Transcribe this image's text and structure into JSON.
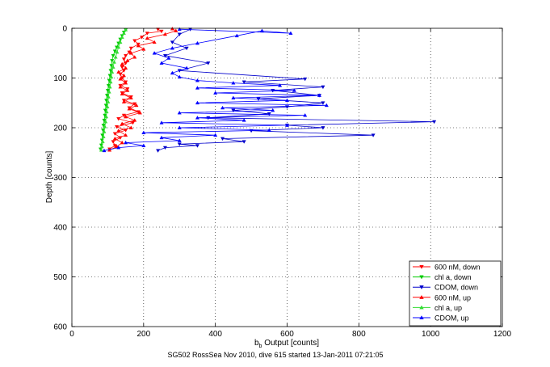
{
  "figure": {
    "caption": "SG502 RossSea Nov 2010, dive 615 started 13-Jan-2011 07:21:05",
    "background": "#ffffff"
  },
  "chart_data": {
    "type": "line",
    "title": "",
    "xlabel_main": "b",
    "xlabel_sub": "b",
    "xlabel_rest": " Output [counts]",
    "ylabel": "Depth [counts]",
    "xlim": [
      0,
      1200
    ],
    "ylim": [
      0,
      600
    ],
    "y_reversed": true,
    "grid": true,
    "grid_style": "dotted",
    "xticks": [
      0,
      200,
      400,
      600,
      800,
      1000,
      1200
    ],
    "yticks": [
      0,
      100,
      200,
      300,
      400,
      500,
      600
    ],
    "legend_position": "bottom-right",
    "series": [
      {
        "name": "600 nM, down",
        "color": "#ff0000",
        "marker": "triangle-down",
        "points": [
          [
            240,
            2
          ],
          [
            250,
            6
          ],
          [
            210,
            10
          ],
          [
            195,
            18
          ],
          [
            175,
            25
          ],
          [
            185,
            32
          ],
          [
            165,
            40
          ],
          [
            160,
            48
          ],
          [
            150,
            55
          ],
          [
            145,
            62
          ],
          [
            150,
            70
          ],
          [
            140,
            78
          ],
          [
            145,
            85
          ],
          [
            135,
            92
          ],
          [
            140,
            100
          ],
          [
            150,
            108
          ],
          [
            135,
            115
          ],
          [
            155,
            122
          ],
          [
            140,
            130
          ],
          [
            165,
            138
          ],
          [
            145,
            145
          ],
          [
            175,
            152
          ],
          [
            160,
            160
          ],
          [
            185,
            168
          ],
          [
            145,
            175
          ],
          [
            130,
            182
          ],
          [
            170,
            190
          ],
          [
            125,
            198
          ],
          [
            150,
            205
          ],
          [
            120,
            212
          ],
          [
            135,
            220
          ],
          [
            115,
            228
          ],
          [
            120,
            236
          ],
          [
            105,
            243
          ]
        ]
      },
      {
        "name": "chl a, down",
        "color": "#00cc00",
        "marker": "triangle-down",
        "points": [
          [
            150,
            3
          ],
          [
            145,
            8
          ],
          [
            140,
            15
          ],
          [
            135,
            22
          ],
          [
            130,
            30
          ],
          [
            125,
            38
          ],
          [
            120,
            46
          ],
          [
            115,
            55
          ],
          [
            112,
            65
          ],
          [
            110,
            75
          ],
          [
            108,
            85
          ],
          [
            106,
            95
          ],
          [
            104,
            105
          ],
          [
            102,
            115
          ],
          [
            100,
            125
          ],
          [
            98,
            135
          ],
          [
            96,
            145
          ],
          [
            95,
            155
          ],
          [
            93,
            165
          ],
          [
            92,
            175
          ],
          [
            90,
            185
          ],
          [
            88,
            195
          ],
          [
            87,
            205
          ],
          [
            85,
            215
          ],
          [
            84,
            225
          ],
          [
            82,
            235
          ],
          [
            80,
            243
          ]
        ]
      },
      {
        "name": "CDOM, down",
        "color": "#0000cc",
        "marker": "triangle-down",
        "points": [
          [
            330,
            2
          ],
          [
            300,
            12
          ],
          [
            280,
            28
          ],
          [
            320,
            40
          ],
          [
            260,
            55
          ],
          [
            380,
            70
          ],
          [
            300,
            85
          ],
          [
            650,
            102
          ],
          [
            480,
            108
          ],
          [
            700,
            118
          ],
          [
            560,
            125
          ],
          [
            690,
            135
          ],
          [
            520,
            142
          ],
          [
            700,
            150
          ],
          [
            600,
            158
          ],
          [
            450,
            165
          ],
          [
            550,
            172
          ],
          [
            380,
            180
          ],
          [
            1010,
            188
          ],
          [
            600,
            195
          ],
          [
            700,
            200
          ],
          [
            500,
            206
          ],
          [
            840,
            215
          ],
          [
            420,
            222
          ],
          [
            480,
            228
          ],
          [
            300,
            233
          ],
          [
            350,
            236
          ],
          [
            260,
            240
          ],
          [
            240,
            246
          ]
        ]
      },
      {
        "name": "600 nM, up",
        "color": "#ff0000",
        "marker": "triangle-up",
        "points": [
          [
            105,
            245
          ],
          [
            125,
            238
          ],
          [
            140,
            230
          ],
          [
            120,
            222
          ],
          [
            150,
            215
          ],
          [
            130,
            206
          ],
          [
            165,
            200
          ],
          [
            140,
            192
          ],
          [
            175,
            185
          ],
          [
            150,
            178
          ],
          [
            190,
            170
          ],
          [
            160,
            162
          ],
          [
            180,
            155
          ],
          [
            145,
            148
          ],
          [
            165,
            140
          ],
          [
            140,
            132
          ],
          [
            155,
            125
          ],
          [
            135,
            118
          ],
          [
            150,
            110
          ],
          [
            135,
            102
          ],
          [
            145,
            95
          ],
          [
            130,
            88
          ],
          [
            150,
            80
          ],
          [
            140,
            72
          ],
          [
            155,
            65
          ],
          [
            175,
            58
          ],
          [
            165,
            50
          ],
          [
            200,
            42
          ],
          [
            185,
            35
          ],
          [
            230,
            28
          ],
          [
            210,
            20
          ],
          [
            260,
            12
          ],
          [
            290,
            5
          ],
          [
            280,
            1
          ]
        ]
      },
      {
        "name": "chl a, up",
        "color": "#33dd33",
        "marker": "triangle-up",
        "points": [
          [
            82,
            245
          ],
          [
            84,
            238
          ],
          [
            86,
            228
          ],
          [
            88,
            218
          ],
          [
            90,
            208
          ],
          [
            92,
            198
          ],
          [
            94,
            188
          ],
          [
            96,
            178
          ],
          [
            97,
            168
          ],
          [
            99,
            158
          ],
          [
            101,
            148
          ],
          [
            102,
            138
          ],
          [
            104,
            128
          ],
          [
            106,
            118
          ],
          [
            108,
            108
          ],
          [
            110,
            98
          ],
          [
            112,
            88
          ],
          [
            115,
            78
          ],
          [
            118,
            68
          ],
          [
            122,
            58
          ],
          [
            126,
            48
          ],
          [
            130,
            38
          ],
          [
            135,
            28
          ],
          [
            140,
            18
          ],
          [
            145,
            10
          ],
          [
            150,
            3
          ]
        ]
      },
      {
        "name": "CDOM, up",
        "color": "#0000ff",
        "marker": "triangle-up",
        "points": [
          [
            90,
            246
          ],
          [
            130,
            240
          ],
          [
            200,
            236
          ],
          [
            150,
            230
          ],
          [
            300,
            226
          ],
          [
            250,
            220
          ],
          [
            400,
            215
          ],
          [
            200,
            210
          ],
          [
            550,
            205
          ],
          [
            300,
            200
          ],
          [
            600,
            195
          ],
          [
            250,
            190
          ],
          [
            480,
            185
          ],
          [
            350,
            180
          ],
          [
            650,
            175
          ],
          [
            300,
            170
          ],
          [
            560,
            165
          ],
          [
            420,
            160
          ],
          [
            710,
            155
          ],
          [
            350,
            150
          ],
          [
            600,
            145
          ],
          [
            450,
            140
          ],
          [
            690,
            135
          ],
          [
            400,
            130
          ],
          [
            620,
            125
          ],
          [
            350,
            120
          ],
          [
            580,
            115
          ],
          [
            450,
            110
          ],
          [
            350,
            105
          ],
          [
            300,
            98
          ],
          [
            280,
            90
          ],
          [
            320,
            80
          ],
          [
            250,
            70
          ],
          [
            270,
            60
          ],
          [
            230,
            50
          ],
          [
            280,
            40
          ],
          [
            350,
            30
          ],
          [
            460,
            15
          ],
          [
            530,
            5
          ],
          [
            610,
            10
          ],
          [
            300,
            2
          ]
        ]
      }
    ]
  }
}
